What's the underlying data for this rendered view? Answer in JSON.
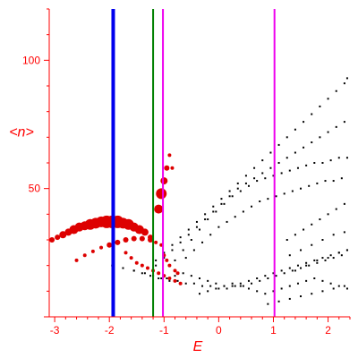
{
  "chart_data": {
    "type": "scatter",
    "xlabel": "E",
    "ylabel": "<n>",
    "xlim": [
      -3.1,
      2.4
    ],
    "ylim": [
      0,
      120
    ],
    "x_ticks": [
      -3,
      -2,
      -1,
      0,
      1,
      2
    ],
    "y_ticks": [
      50,
      100
    ],
    "y_minor_step": 10,
    "x_minor_step": 0.2,
    "grid": false,
    "colors": {
      "axis": "#ff0000",
      "black_points": "#000000",
      "red_points": "#dd0000",
      "line_blue": "#0000ee",
      "line_green": "#008000",
      "line_magenta": "#ee00ee"
    },
    "vertical_lines": [
      {
        "x": -1.93,
        "color": "blue",
        "width": "thick"
      },
      {
        "x": -1.2,
        "color": "green",
        "width": "normal"
      },
      {
        "x": -1.02,
        "color": "magenta",
        "width": "normal"
      },
      {
        "x": 1.02,
        "color": "magenta",
        "width": "normal"
      }
    ],
    "series": [
      {
        "points_x": [
          -1.15,
          -1.0,
          -0.85,
          -0.7,
          -0.55,
          -0.4,
          -0.25,
          -0.1,
          0.05,
          0.2,
          0.35,
          0.5,
          0.65,
          0.8,
          0.95,
          1.1,
          1.25,
          1.4,
          1.55,
          1.7,
          1.85,
          2.0,
          2.15,
          2.3,
          2.35,
          -1.15,
          -1.0,
          -0.85,
          -0.7,
          -0.55,
          -0.4,
          -0.25,
          -0.1,
          0.05,
          0.2,
          0.35,
          0.5,
          0.65,
          0.8,
          0.95,
          1.1,
          1.25,
          1.4,
          1.55,
          1.7,
          1.85,
          2.0,
          2.15,
          2.3,
          -0.8,
          -0.65,
          -0.5,
          -0.35,
          -0.2,
          -0.05,
          0.1,
          0.25,
          0.4,
          0.55,
          0.7,
          0.85,
          1.0,
          1.15,
          1.3,
          1.45,
          1.6,
          1.75,
          1.9,
          2.05,
          2.2,
          2.35,
          -0.6,
          -0.45,
          -0.3,
          -0.15,
          0.0,
          0.15,
          0.3,
          0.45,
          0.6,
          0.75,
          0.9,
          1.05,
          1.2,
          1.35,
          1.5,
          1.65,
          1.8,
          1.95,
          2.1,
          2.25,
          -1.95,
          -1.75,
          -1.55,
          -1.4,
          -1.25,
          -1.1,
          -0.95,
          -0.8,
          -0.65,
          -0.5,
          -0.35,
          -0.2,
          -0.05,
          0.1,
          0.25,
          0.4,
          0.55,
          0.7,
          0.85,
          1.0,
          1.15,
          1.3,
          1.45,
          1.6,
          1.75,
          1.9,
          2.05,
          2.2,
          2.35,
          -1.55,
          -1.35,
          -1.2,
          -1.05,
          -0.9,
          -0.75,
          -0.6,
          -0.45,
          -0.3,
          -0.15,
          0.0,
          0.15,
          0.3,
          0.45,
          0.6,
          0.75,
          0.9,
          1.05,
          1.2,
          1.35,
          1.5,
          1.65,
          1.8,
          1.95,
          2.1,
          2.25,
          -0.35,
          -0.2,
          -0.05,
          0.1,
          0.25,
          0.4,
          0.55,
          0.7,
          0.85,
          1.0,
          1.15,
          1.3,
          1.45,
          1.6,
          1.75,
          1.9,
          2.05,
          2.2,
          2.35,
          1.25,
          1.4,
          1.55,
          1.7,
          1.85,
          2.0,
          2.15,
          2.3,
          1.3,
          1.5,
          1.7,
          1.9,
          2.1,
          2.3,
          1.4,
          1.6,
          1.8,
          2.0,
          2.2,
          2.35,
          0.9,
          1.1,
          1.3,
          1.5,
          1.7,
          1.9,
          2.1,
          2.3
        ],
        "points_y": [
          22,
          25,
          28,
          31,
          34,
          37,
          40,
          43,
          46,
          49,
          52,
          55,
          58,
          61,
          64,
          67,
          70,
          73,
          76,
          79,
          82,
          85,
          88,
          91,
          93,
          20,
          23,
          26,
          29,
          32,
          35,
          38,
          41,
          44,
          47,
          50,
          52,
          54,
          56,
          58,
          60,
          62,
          64,
          66,
          68,
          70,
          72,
          74,
          76,
          22,
          26,
          30,
          34,
          38,
          41,
          44,
          47,
          49,
          51,
          53,
          54,
          55,
          56,
          57,
          58,
          59,
          60,
          60,
          61,
          62,
          62,
          23,
          26,
          29,
          32,
          35,
          37,
          39,
          41,
          43,
          45,
          46,
          47,
          48,
          49,
          50,
          51,
          52,
          53,
          53,
          54,
          20,
          19,
          18,
          17,
          16,
          15,
          15,
          16,
          17,
          16,
          15,
          14,
          13,
          12,
          12,
          13,
          14,
          15,
          16,
          17,
          18,
          19,
          20,
          21,
          22,
          23,
          24,
          25,
          26,
          18,
          17,
          16,
          15,
          14,
          14,
          13,
          13,
          12,
          12,
          11,
          11,
          12,
          12,
          13,
          14,
          15,
          16,
          17,
          18,
          19,
          20,
          21,
          22,
          23,
          24,
          9,
          10,
          11,
          12,
          13,
          12,
          11,
          10,
          9,
          10,
          11,
          12,
          13,
          14,
          15,
          14,
          13,
          12,
          11,
          30,
          32,
          34,
          36,
          38,
          40,
          42,
          44,
          24,
          26,
          28,
          30,
          32,
          33,
          18,
          20,
          22,
          23,
          25,
          26,
          5,
          6,
          7,
          8,
          9,
          10,
          11,
          12
        ],
        "color": "black",
        "marker": "dot"
      },
      {
        "points_x": [
          -3.05,
          -2.95,
          -2.85,
          -2.75,
          -2.65,
          -2.55,
          -2.45,
          -2.35,
          -2.25,
          -2.15,
          -2.05,
          -1.95,
          -1.85,
          -1.75,
          -1.65,
          -1.55,
          -1.45,
          -1.35,
          -1.25,
          -2.6,
          -2.45,
          -2.3,
          -2.15,
          -2.0,
          -1.85,
          -1.7,
          -1.55,
          -1.4,
          -1.25,
          -1.15,
          -1.05,
          -1.1,
          -1.05,
          -1.0,
          -0.95,
          -0.9,
          -0.85,
          -1.0,
          -0.95,
          -0.9,
          -0.8,
          -0.75,
          -1.7,
          -1.6,
          -1.5,
          -1.4,
          -1.3,
          -1.2,
          -1.1,
          -1.0,
          -0.9,
          -0.8,
          -0.7
        ],
        "points_y": [
          30,
          31,
          32,
          33,
          34,
          35,
          35.5,
          36,
          36.5,
          37,
          37,
          37,
          37,
          36.5,
          36,
          35,
          34,
          33,
          31,
          22,
          24,
          25.5,
          27,
          28,
          29,
          30,
          30.5,
          30.5,
          30,
          29,
          28,
          42,
          48,
          53,
          58,
          63,
          58,
          24,
          22,
          20,
          18,
          17,
          25,
          23,
          21,
          20,
          19,
          18,
          17,
          16,
          15,
          14,
          13
        ],
        "point_sizes": [
          3,
          3,
          4,
          4,
          5,
          5,
          5,
          6,
          6,
          6,
          7,
          7,
          7,
          6,
          6,
          5,
          5,
          4,
          3,
          2,
          2,
          2,
          2,
          3,
          3,
          3,
          3,
          3,
          3,
          2,
          2,
          5,
          6,
          4,
          3,
          2,
          2,
          2,
          2,
          2,
          2,
          2,
          2,
          2,
          2,
          2,
          2,
          2,
          2,
          2,
          2,
          2,
          2
        ],
        "color": "red",
        "marker": "circle"
      }
    ]
  }
}
